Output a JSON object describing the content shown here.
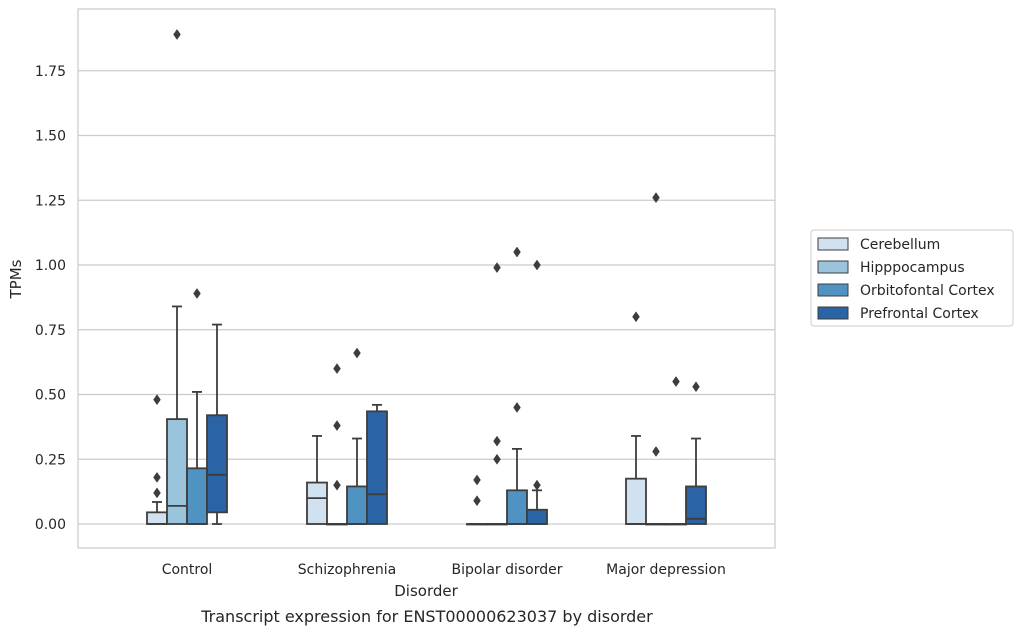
{
  "caption": "Transcript expression for ENST00000623037 by disorder",
  "chart_data": {
    "type": "box",
    "title": "",
    "xlabel": "Disorder",
    "ylabel": "TPMs",
    "ylim": [
      -0.09,
      1.99
    ],
    "yticks": [
      0.0,
      0.25,
      0.5,
      0.75,
      1.0,
      1.25,
      1.5,
      1.75
    ],
    "ytick_labels": [
      "0.00",
      "0.25",
      "0.50",
      "0.75",
      "1.00",
      "1.25",
      "1.50",
      "1.75"
    ],
    "grid": "horizontal",
    "legend_position": "right",
    "categories": [
      "Control",
      "Schizophrenia",
      "Bipolar disorder",
      "Major depression"
    ],
    "series": [
      {
        "name": "Cerebellum",
        "color": "#d1e1f0",
        "boxes": [
          {
            "q1": 0.0,
            "median": 0.0,
            "q3": 0.045,
            "whislo": 0.0,
            "whishi": 0.085,
            "fliers": [
              0.12,
              0.18,
              0.48
            ]
          },
          {
            "q1": 0.0,
            "median": 0.1,
            "q3": 0.16,
            "whislo": 0.0,
            "whishi": 0.34,
            "fliers": []
          },
          {
            "q1": 0.0,
            "median": 0.0,
            "q3": 0.0,
            "whislo": 0.0,
            "whishi": 0.0,
            "fliers": [
              0.09,
              0.17
            ]
          },
          {
            "q1": 0.0,
            "median": 0.0,
            "q3": 0.175,
            "whislo": 0.0,
            "whishi": 0.34,
            "fliers": [
              0.8
            ]
          }
        ]
      },
      {
        "name": "Hipppocampus",
        "color": "#9ac3dc",
        "boxes": [
          {
            "q1": 0.0,
            "median": 0.07,
            "q3": 0.405,
            "whislo": 0.0,
            "whishi": 0.84,
            "fliers": [
              1.89
            ]
          },
          {
            "q1": 0.0,
            "median": 0.0,
            "q3": 0.0,
            "whislo": 0.0,
            "whishi": 0.0,
            "fliers": [
              0.15,
              0.38,
              0.6
            ]
          },
          {
            "q1": 0.0,
            "median": 0.0,
            "q3": 0.0,
            "whislo": 0.0,
            "whishi": 0.0,
            "fliers": [
              0.25,
              0.32,
              0.99
            ]
          },
          {
            "q1": 0.0,
            "median": 0.0,
            "q3": 0.0,
            "whislo": 0.0,
            "whishi": 0.0,
            "fliers": [
              0.28,
              1.26
            ]
          }
        ]
      },
      {
        "name": "Orbitofontal Cortex",
        "color": "#5093c2",
        "boxes": [
          {
            "q1": 0.0,
            "median": 0.0,
            "q3": 0.215,
            "whislo": 0.0,
            "whishi": 0.51,
            "fliers": [
              0.89
            ]
          },
          {
            "q1": 0.0,
            "median": 0.0,
            "q3": 0.145,
            "whislo": 0.0,
            "whishi": 0.33,
            "fliers": [
              0.66
            ]
          },
          {
            "q1": 0.0,
            "median": 0.0,
            "q3": 0.13,
            "whislo": 0.0,
            "whishi": 0.29,
            "fliers": [
              0.45,
              1.05
            ]
          },
          {
            "q1": 0.0,
            "median": 0.0,
            "q3": 0.0,
            "whislo": 0.0,
            "whishi": 0.0,
            "fliers": [
              0.55
            ]
          }
        ]
      },
      {
        "name": "Prefrontal Cortex",
        "color": "#2a64a4",
        "boxes": [
          {
            "q1": 0.045,
            "median": 0.19,
            "q3": 0.42,
            "whislo": 0.0,
            "whishi": 0.77,
            "fliers": []
          },
          {
            "q1": 0.0,
            "median": 0.115,
            "q3": 0.435,
            "whislo": 0.0,
            "whishi": 0.46,
            "fliers": []
          },
          {
            "q1": 0.0,
            "median": 0.0,
            "q3": 0.055,
            "whislo": 0.0,
            "whishi": 0.13,
            "fliers": [
              0.15,
              1.0
            ]
          },
          {
            "q1": 0.0,
            "median": 0.02,
            "q3": 0.145,
            "whislo": 0.0,
            "whishi": 0.33,
            "fliers": [
              0.53
            ]
          }
        ]
      }
    ]
  }
}
